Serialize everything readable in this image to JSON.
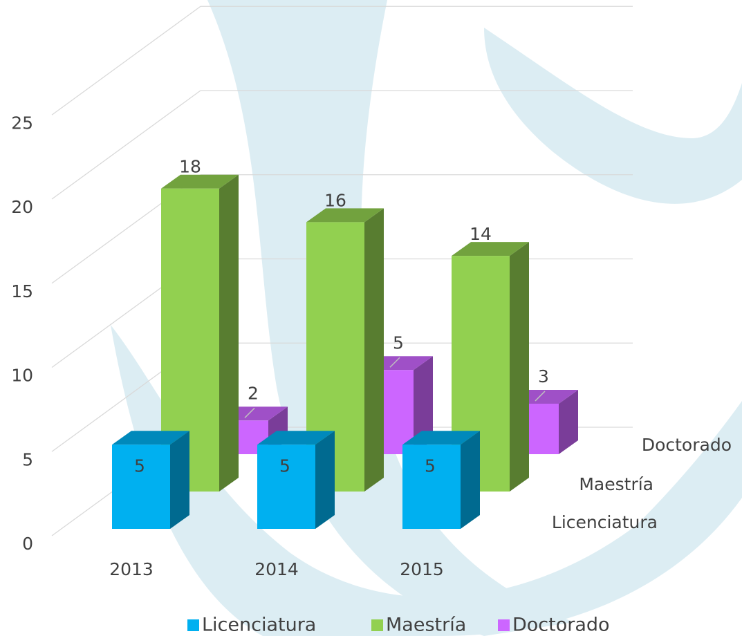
{
  "chart_data": {
    "type": "bar3d",
    "categories": [
      "2013",
      "2014",
      "2015"
    ],
    "series": [
      {
        "name": "Licenciatura",
        "color": "#00b0f0",
        "values": [
          5,
          5,
          5
        ]
      },
      {
        "name": "Maestría",
        "color": "#92d050",
        "values": [
          18,
          16,
          14
        ]
      },
      {
        "name": "Doctorado",
        "color": "#cc66ff",
        "values": [
          2,
          5,
          3
        ]
      }
    ],
    "ylim": [
      0,
      25
    ],
    "yticks": [
      0,
      5,
      10,
      15,
      20,
      25
    ],
    "grid": true,
    "legend": "bottom"
  }
}
